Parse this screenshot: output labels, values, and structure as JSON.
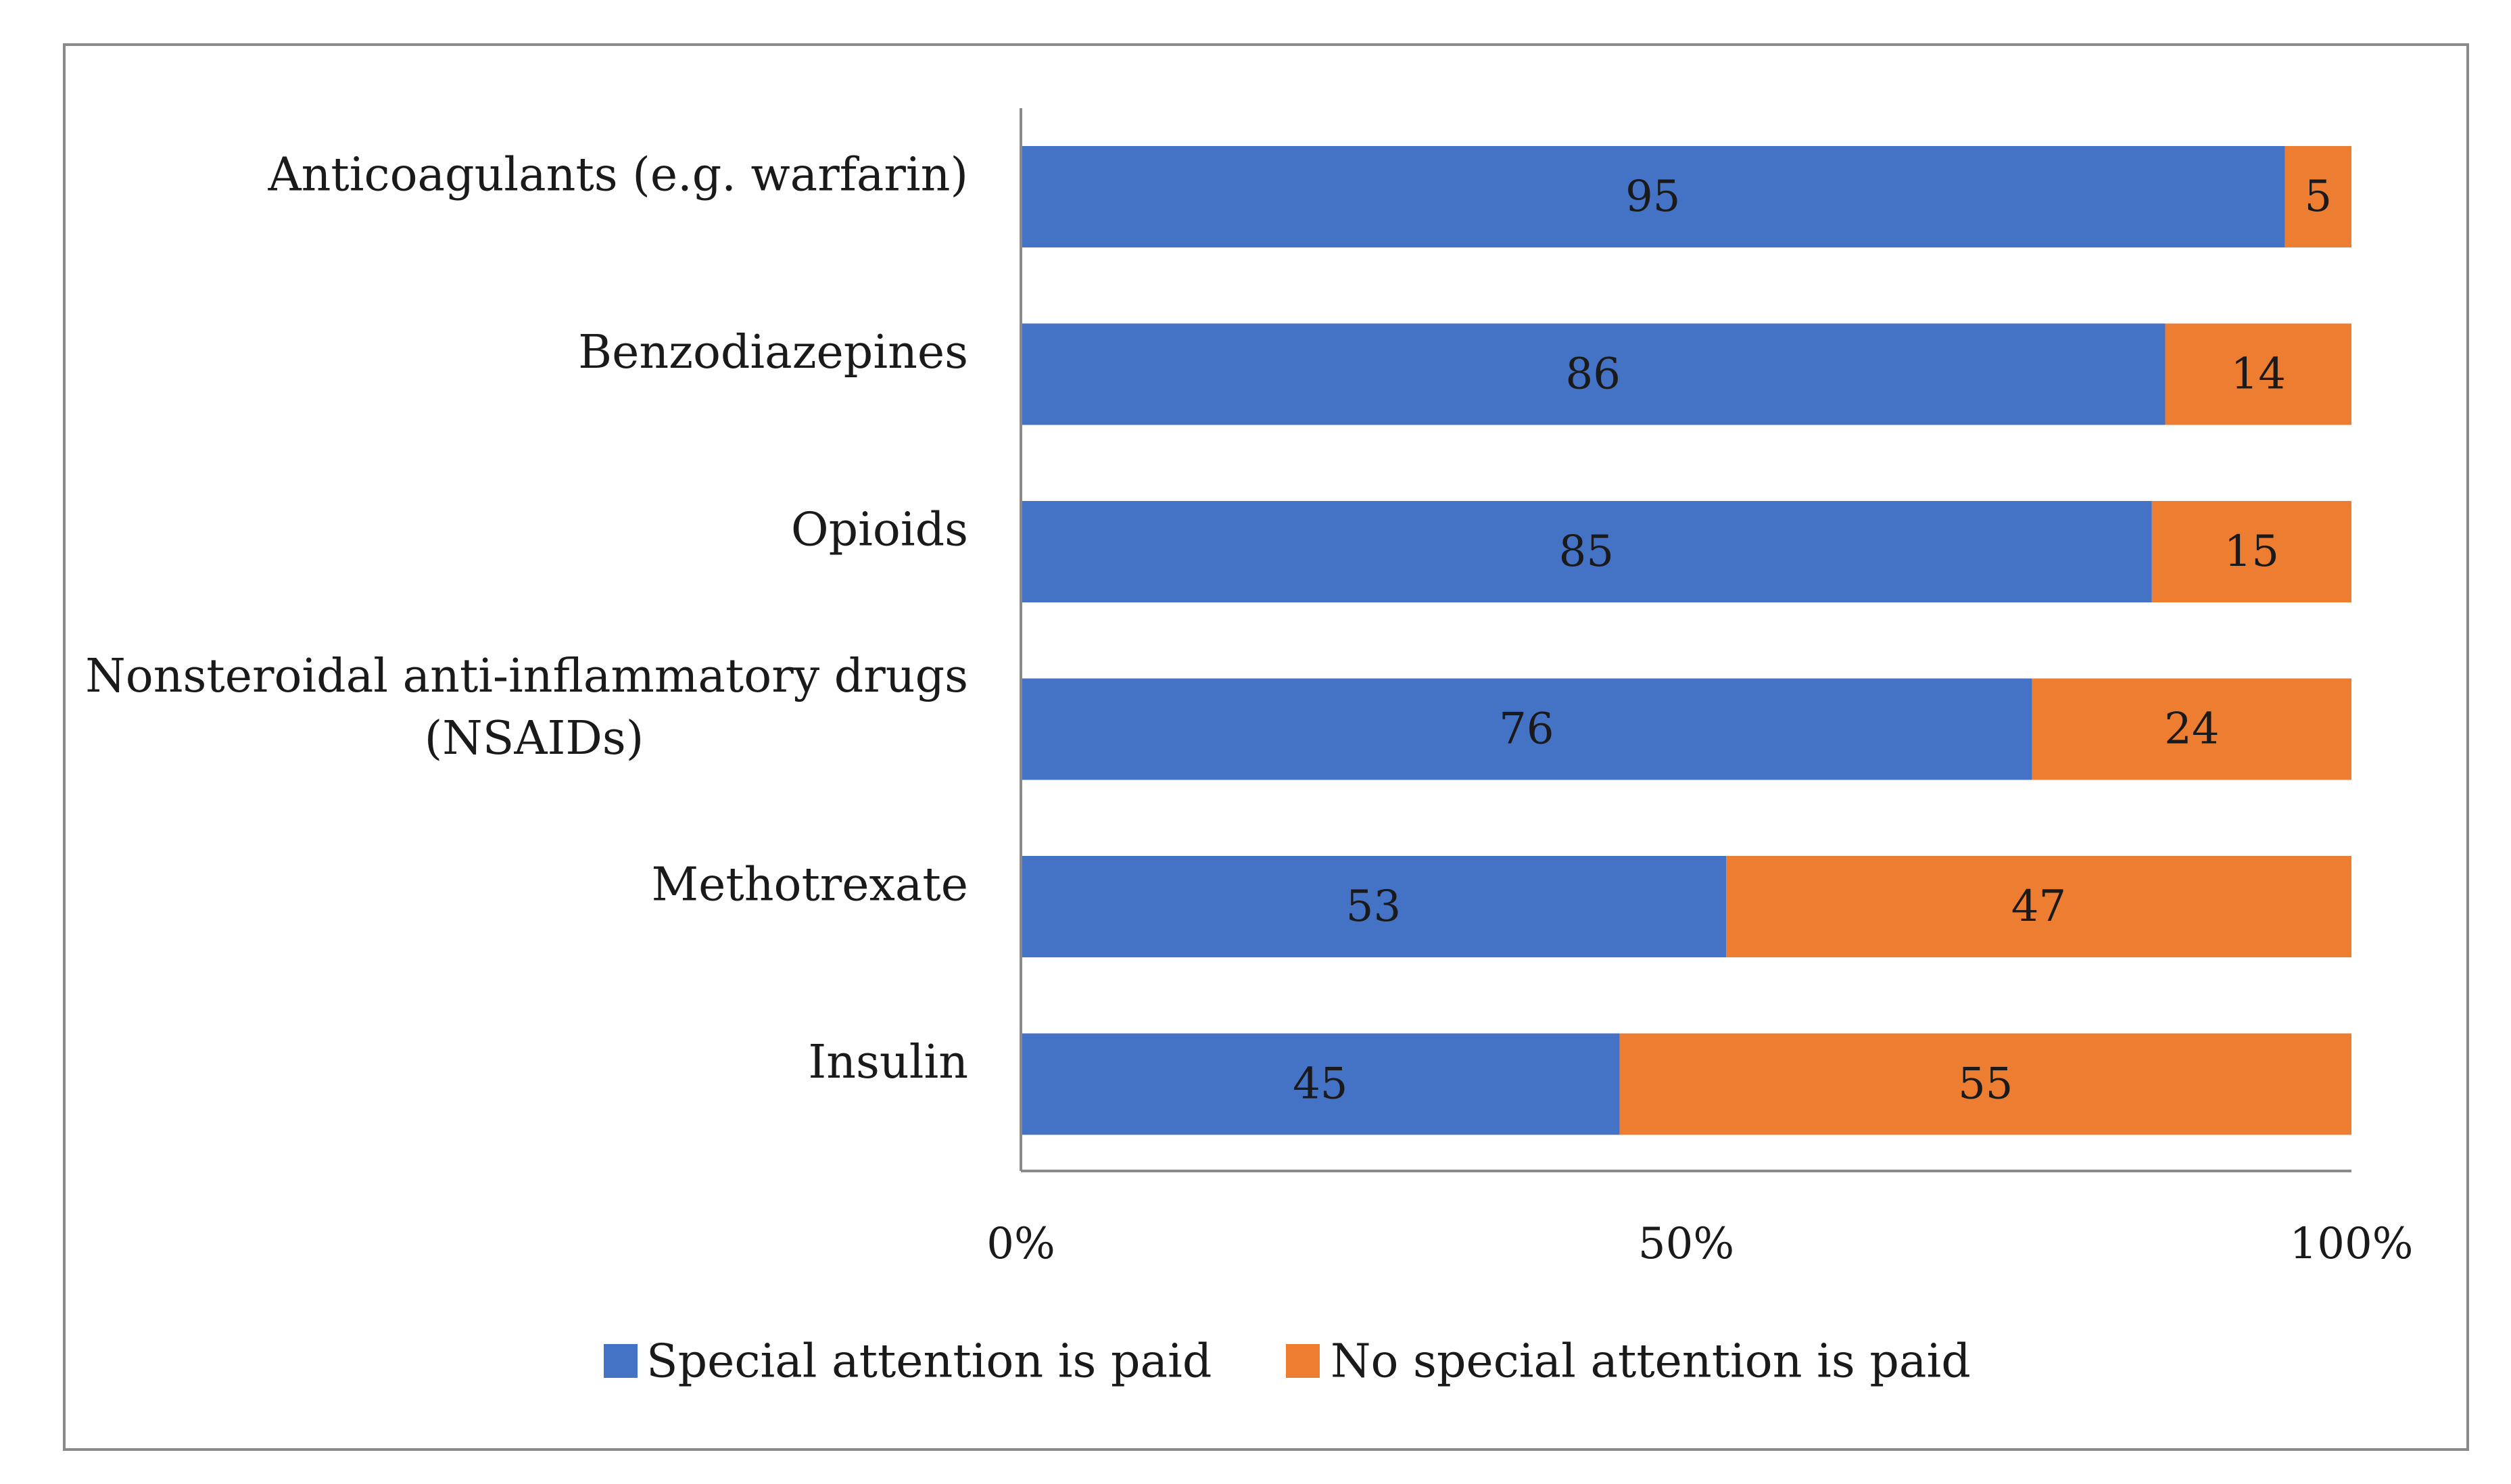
{
  "chart_data": {
    "type": "bar",
    "orientation": "horizontal",
    "stacked": true,
    "percent_stacked": true,
    "categories": [
      "Anticoagulants (e.g. warfarin)",
      "Benzodiazepines",
      "Opioids",
      "Nonsteroidal anti-inflammatory drugs (NSAIDs)",
      "Methotrexate",
      "Insulin"
    ],
    "category_lines": [
      [
        "Anticoagulants (e.g. warfarin)"
      ],
      [
        "Benzodiazepines"
      ],
      [
        "Opioids"
      ],
      [
        "Nonsteroidal anti-inflammatory drugs",
        "(NSAIDs)"
      ],
      [
        "Methotrexate"
      ],
      [
        "Insulin"
      ]
    ],
    "series": [
      {
        "name": "Special attention is paid",
        "color": "#4472C4",
        "values": [
          95,
          86,
          85,
          76,
          53,
          45
        ]
      },
      {
        "name": "No special attention is paid",
        "color": "#ED7D31",
        "values": [
          5,
          14,
          15,
          24,
          47,
          55
        ]
      }
    ],
    "xlim": [
      0,
      100
    ],
    "xticks": [
      0,
      50,
      100
    ],
    "xtick_labels": [
      "0%",
      "50%",
      "100%"
    ],
    "title": "",
    "xlabel": "",
    "ylabel": "",
    "grid": false,
    "legend_position": "bottom-center"
  }
}
